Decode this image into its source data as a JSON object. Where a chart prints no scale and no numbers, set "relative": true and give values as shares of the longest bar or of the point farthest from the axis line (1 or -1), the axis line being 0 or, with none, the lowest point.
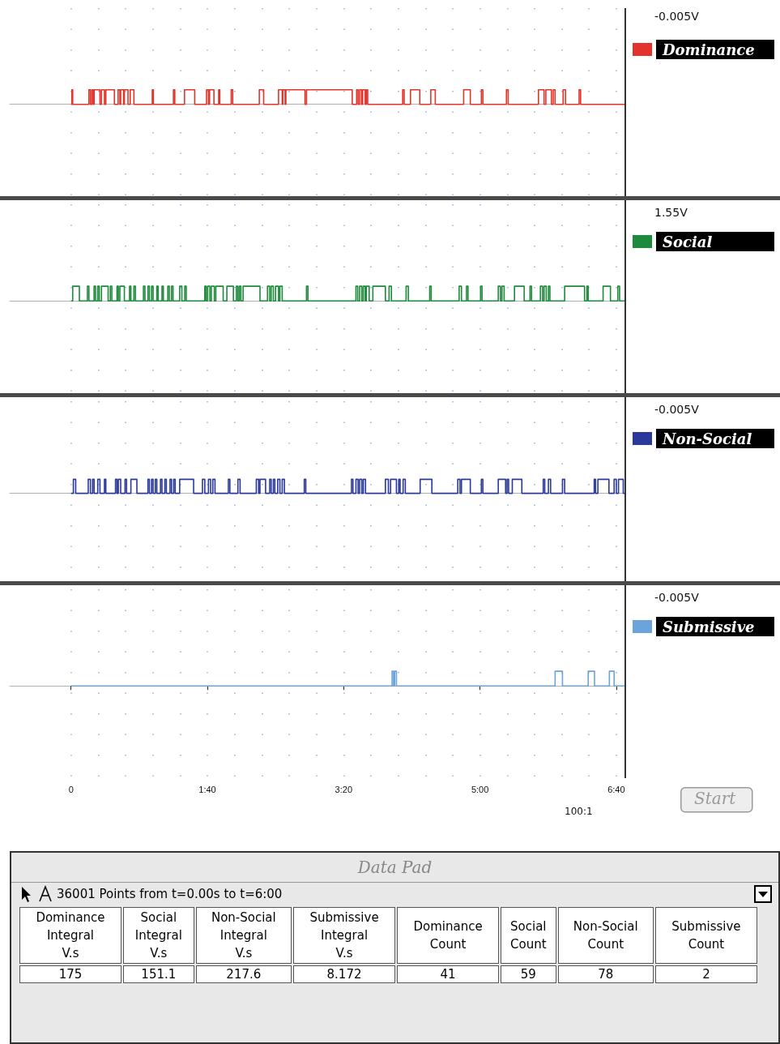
{
  "chart_data": [
    {
      "type": "step",
      "relative": true,
      "xlim": [
        -45,
        406
      ],
      "xticks": [
        0,
        20,
        40,
        60,
        80,
        100,
        120,
        140,
        160,
        180,
        200,
        220,
        240,
        260,
        280,
        300,
        320,
        340,
        360,
        380,
        400
      ],
      "grid": "x",
      "tick_labels": false,
      "legend": "top right",
      "annotations": [
        "-0.005V"
      ],
      "series": [
        {
          "name": "Dominance",
          "color": "#e3342b",
          "x": [
            0,
            0.6,
            1.2,
            13.1,
            14.2,
            15.3,
            16.3,
            16.9,
            21.2,
            22.3,
            24.5,
            25.5,
            31.8,
            34.5,
            35.8,
            36.4,
            38.5,
            39.1,
            41.8,
            43.4,
            46.1,
            59.6,
            60.4,
            75.1,
            76.1,
            83.2,
            90.7,
            99.4,
            100.8,
            101.6,
            104.8,
            108.3,
            109.1,
            117.5,
            118.6,
            138.1,
            141.3,
            152.2,
            154.9,
            155.4,
            157.0,
            157.6,
            171.6,
            172.7,
            206.3,
            209.5,
            210.6,
            211.7,
            213.1,
            213.9,
            215.8,
            216.6,
            217.6,
            243.3,
            244.4,
            249.0,
            255.8,
            263.9,
            267.2,
            288.0,
            292.9,
            301.0,
            302.1,
            319.4,
            320.7,
            342.9,
            347.0,
            348.3,
            352.4,
            353.7,
            355.1,
            361.0,
            362.7,
            372.7,
            373.8,
            406
          ],
          "values": [
            0,
            1,
            0,
            1,
            0,
            1,
            0,
            1,
            0,
            1,
            0,
            1,
            0,
            1,
            0,
            1,
            0,
            1,
            0,
            1,
            0,
            1,
            0,
            1,
            0,
            1,
            0,
            1,
            0,
            1,
            0,
            1,
            0,
            1,
            0,
            1,
            0,
            1,
            0,
            1,
            0,
            1,
            0,
            1,
            0,
            1,
            0,
            1,
            0,
            1,
            0,
            1,
            0,
            1,
            0,
            1,
            0,
            1,
            0,
            1,
            0,
            1,
            0,
            1,
            0,
            1,
            0,
            1,
            0,
            1,
            0,
            1,
            0,
            1,
            0,
            0
          ]
        }
      ]
    },
    {
      "type": "step",
      "relative": true,
      "xlim": [
        -45,
        406
      ],
      "xticks": [
        0,
        20,
        40,
        60,
        80,
        100,
        120,
        140,
        160,
        180,
        200,
        220,
        240,
        260,
        280,
        300,
        320,
        340,
        360,
        380,
        400
      ],
      "grid": "x",
      "tick_labels": false,
      "legend": "top right",
      "annotations": [
        "1.55V"
      ],
      "series": [
        {
          "name": "Social",
          "color": "#1e8a3c",
          "x": [
            0,
            1.2,
            6.1,
            12.0,
            13.1,
            16.9,
            18.0,
            19.6,
            20.7,
            22.3,
            27.2,
            28.8,
            29.9,
            33.7,
            34.7,
            35.8,
            39.1,
            42.9,
            43.9,
            46.1,
            47.2,
            53.1,
            54.2,
            56.4,
            57.5,
            59.1,
            60.2,
            62.9,
            63.9,
            66.7,
            67.7,
            71.0,
            72.1,
            73.7,
            74.8,
            79.7,
            81.3,
            83.4,
            84.5,
            98.1,
            99.1,
            100.2,
            101.8,
            102.9,
            105.1,
            106.2,
            111.6,
            114.3,
            119.1,
            121.3,
            122.4,
            123.5,
            124.6,
            126.2,
            138.6,
            144.1,
            145.7,
            146.8,
            148.4,
            150.0,
            152.2,
            153.2,
            154.9,
            172.7,
            173.8,
            209.0,
            210.3,
            211.7,
            213.3,
            214.4,
            215.8,
            216.6,
            218.7,
            221.4,
            230.6,
            233.3,
            235.0,
            245.8,
            247.4,
            263.1,
            264.2,
            284.7,
            286.4,
            290.1,
            291.2,
            300.4,
            301.5,
            313.4,
            315.0,
            316.1,
            317.7,
            325.3,
            332.4,
            336.7,
            337.8,
            344.3,
            345.9,
            347.0,
            348.6,
            350.2,
            351.3,
            362.1,
            376.7,
            378.4,
            379.4,
            390.3,
            395.7,
            401.1,
            402.4,
            406
          ],
          "values": [
            0,
            1,
            0,
            1,
            0,
            1,
            0,
            1,
            0,
            1,
            0,
            1,
            0,
            1,
            0,
            1,
            0,
            1,
            0,
            1,
            0,
            1,
            0,
            1,
            0,
            1,
            0,
            1,
            0,
            1,
            0,
            1,
            0,
            1,
            0,
            1,
            0,
            1,
            0,
            1,
            0,
            1,
            0,
            1,
            0,
            1,
            0,
            1,
            0,
            1,
            0,
            1,
            0,
            1,
            0,
            1,
            0,
            1,
            0,
            1,
            0,
            1,
            0,
            1,
            0,
            1,
            0,
            1,
            0,
            1,
            0,
            1,
            0,
            1,
            0,
            1,
            0,
            1,
            0,
            1,
            0,
            1,
            0,
            1,
            0,
            1,
            0,
            1,
            0,
            1,
            0,
            1,
            0,
            1,
            0,
            1,
            0,
            1,
            0,
            1,
            0,
            1,
            0,
            1,
            0,
            1,
            0,
            1,
            0,
            0
          ]
        }
      ]
    },
    {
      "type": "step",
      "relative": true,
      "xlim": [
        -45,
        406
      ],
      "xticks": [
        0,
        20,
        40,
        60,
        80,
        100,
        120,
        140,
        160,
        180,
        200,
        220,
        240,
        260,
        280,
        300,
        320,
        340,
        360,
        380,
        400
      ],
      "grid": "x",
      "tick_labels": false,
      "legend": "top right",
      "annotations": [
        "-0.005V"
      ],
      "series": [
        {
          "name": "Non-Social",
          "color": "#2b3a9a",
          "x": [
            0,
            1.7,
            3.4,
            12.6,
            14.2,
            15.8,
            16.9,
            19.6,
            21.2,
            24.5,
            25.5,
            32.6,
            33.7,
            34.7,
            36.4,
            39.6,
            40.7,
            43.9,
            48.3,
            56.4,
            57.5,
            59.1,
            60.2,
            61.8,
            62.9,
            65.6,
            66.7,
            68.8,
            69.9,
            72.6,
            73.7,
            75.3,
            76.4,
            79.7,
            89.9,
            96.4,
            98.1,
            100.8,
            102.4,
            104.0,
            105.6,
            115.4,
            116.5,
            122.4,
            124.0,
            135.9,
            137.6,
            138.6,
            142.7,
            145.7,
            146.8,
            148.4,
            149.5,
            151.6,
            153.2,
            154.9,
            156.5,
            171.1,
            172.2,
            205.7,
            206.8,
            209.0,
            210.6,
            211.7,
            213.3,
            214.4,
            216.0,
            230.6,
            232.8,
            234.4,
            238.7,
            240.4,
            241.4,
            243.6,
            245.2,
            256.1,
            264.7,
            283.7,
            285.3,
            286.4,
            292.9,
            301.0,
            302.1,
            313.4,
            318.8,
            319.9,
            321.0,
            323.7,
            330.7,
            346.4,
            347.5,
            350.2,
            351.8,
            360.5,
            362.1,
            383.8,
            384.8,
            386.5,
            394.6,
            398.4,
            400.0,
            401.6,
            405.1,
            406
          ],
          "values": [
            0,
            1,
            0,
            1,
            0,
            1,
            0,
            1,
            0,
            1,
            0,
            1,
            0,
            1,
            0,
            1,
            0,
            1,
            0,
            1,
            0,
            1,
            0,
            1,
            0,
            1,
            0,
            1,
            0,
            1,
            0,
            1,
            0,
            1,
            0,
            1,
            0,
            1,
            0,
            1,
            0,
            1,
            0,
            1,
            0,
            1,
            0,
            1,
            0,
            1,
            0,
            1,
            0,
            1,
            0,
            1,
            0,
            1,
            0,
            1,
            0,
            1,
            0,
            1,
            0,
            1,
            0,
            1,
            0,
            1,
            0,
            1,
            0,
            1,
            0,
            1,
            0,
            1,
            0,
            1,
            0,
            1,
            0,
            1,
            0,
            1,
            0,
            1,
            0,
            1,
            0,
            1,
            0,
            1,
            0,
            1,
            0,
            1,
            0,
            1,
            0,
            1,
            0,
            0
          ]
        }
      ]
    },
    {
      "type": "step",
      "relative": true,
      "xlim": [
        -45,
        406
      ],
      "xticks": [
        {
          "value": 0,
          "label": "0"
        },
        {
          "value": 20,
          "label": null
        },
        {
          "value": 40,
          "label": null
        },
        {
          "value": 60,
          "label": null
        },
        {
          "value": 80,
          "label": null
        },
        {
          "value": 100,
          "label": "1:40"
        },
        {
          "value": 120,
          "label": null
        },
        {
          "value": 140,
          "label": null
        },
        {
          "value": 160,
          "label": null
        },
        {
          "value": 180,
          "label": null
        },
        {
          "value": 200,
          "label": "3:20"
        },
        {
          "value": 220,
          "label": null
        },
        {
          "value": 240,
          "label": null
        },
        {
          "value": 260,
          "label": null
        },
        {
          "value": 280,
          "label": null
        },
        {
          "value": 300,
          "label": "5:00"
        },
        {
          "value": 320,
          "label": null
        },
        {
          "value": 340,
          "label": null
        },
        {
          "value": 360,
          "label": null
        },
        {
          "value": 380,
          "label": null
        },
        {
          "value": 400,
          "label": "6:40"
        }
      ],
      "grid": "x",
      "tick_labels": "x",
      "legend": "top right",
      "annotations": [
        "-0.005V",
        "100:1",
        "Start"
      ],
      "series": [
        {
          "name": "Submissive",
          "color": "#6ba3dd",
          "x": [
            0,
            235.5,
            236.6,
            237.4,
            238.7,
            355.1,
            360.5,
            379.4,
            384.0,
            394.9,
            398.4,
            406
          ],
          "values": [
            0,
            1,
            0,
            1,
            0,
            1,
            0,
            1,
            0,
            1,
            0,
            0
          ]
        }
      ]
    },
    {
      "type": "other",
      "title": "Data Pad",
      "subtitle": "36001 Points from t=0.00s to t=6:00",
      "data_labels": true,
      "categories": [
        "Dominance\nIntegral\nV.s",
        "Social\nIntegral\nV.s",
        "Non-Social\nIntegral\nV.s",
        "Submissive\nIntegral\nV.s",
        "Dominance\nCount",
        "Social\nCount",
        "Non-Social\nCount",
        "Submissive\nCount"
      ],
      "values": [
        175,
        151.1,
        217.6,
        8.172,
        41,
        59,
        78,
        2
      ]
    }
  ]
}
